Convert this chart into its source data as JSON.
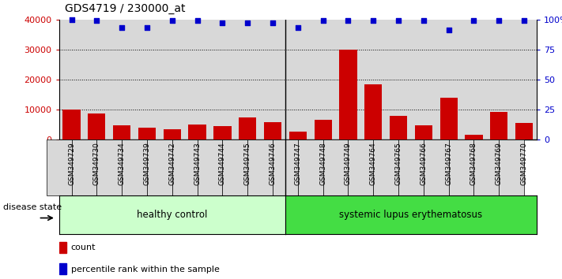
{
  "title": "GDS4719 / 230000_at",
  "samples": [
    "GSM349729",
    "GSM349730",
    "GSM349734",
    "GSM349739",
    "GSM349742",
    "GSM349743",
    "GSM349744",
    "GSM349745",
    "GSM349746",
    "GSM349747",
    "GSM349748",
    "GSM349749",
    "GSM349764",
    "GSM349765",
    "GSM349766",
    "GSM349767",
    "GSM349768",
    "GSM349769",
    "GSM349770"
  ],
  "counts": [
    10000,
    8800,
    4800,
    4000,
    3400,
    4900,
    4400,
    7300,
    5700,
    2700,
    6600,
    30000,
    18500,
    8000,
    4800,
    14000,
    1500,
    9300,
    5400
  ],
  "percentile_values": [
    40000,
    39600,
    37200,
    37200,
    39600,
    39600,
    38800,
    38800,
    38800,
    37200,
    39600,
    39600,
    39600,
    39600,
    39600,
    36400,
    39600,
    39600,
    39600
  ],
  "healthy_control_count": 9,
  "groups": [
    "healthy control",
    "systemic lupus erythematosus"
  ],
  "hc_color": "#ccffcc",
  "sle_color": "#44dd44",
  "bar_color": "#cc0000",
  "dot_color": "#0000cc",
  "bg_color": "#d8d8d8",
  "ylim": [
    0,
    40000
  ],
  "yticks_left": [
    0,
    10000,
    20000,
    30000,
    40000
  ],
  "ytick_labels_left": [
    "0",
    "10000",
    "20000",
    "30000",
    "40000"
  ],
  "ytick_labels_right": [
    "0",
    "25",
    "50",
    "75",
    "100%"
  ],
  "disease_state_label": "disease state",
  "legend_count": "count",
  "legend_pct": "percentile rank within the sample"
}
